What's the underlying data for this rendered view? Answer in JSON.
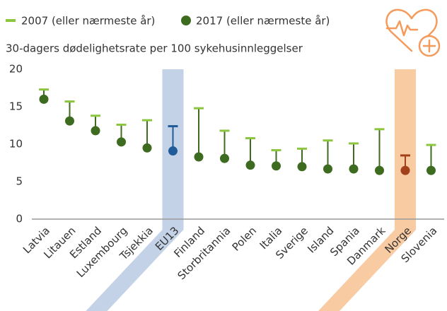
{
  "chart_data": {
    "type": "dumbbell",
    "subtitle": "30-dagers dødelighetsrate per 100 sykehusinnleggelser",
    "categories": [
      "Latvia",
      "Litauen",
      "Estland",
      "Luxembourg",
      "Tsjekkia",
      "EU13",
      "Finland",
      "Storbritannia",
      "Polen",
      "Italia",
      "Sverige",
      "Island",
      "Spania",
      "Danmark",
      "Norge",
      "Slovenia"
    ],
    "series": [
      {
        "name": "2007 (eller nærmeste år)",
        "color": "#8cc63f",
        "values": [
          17.3,
          15.7,
          13.8,
          12.6,
          13.2,
          12.4,
          14.8,
          11.8,
          10.8,
          9.2,
          9.4,
          10.5,
          10.1,
          12.0,
          8.5,
          9.9
        ]
      },
      {
        "name": "2017 (eller nærmeste år)",
        "color": "#3d6b1f",
        "values": [
          16.0,
          13.1,
          11.8,
          10.3,
          9.5,
          9.1,
          8.3,
          8.1,
          7.2,
          7.1,
          7.0,
          6.7,
          6.7,
          6.5,
          6.5,
          6.5
        ]
      }
    ],
    "highlight": {
      "EU13": {
        "color": "#1f5c99",
        "band": "#c4d2e7"
      },
      "Norge": {
        "color": "#a3411b",
        "band": "#f9cba3"
      }
    },
    "ylim": [
      0,
      20
    ],
    "yticks": [
      0,
      5,
      10,
      15,
      20
    ],
    "grid": false
  }
}
